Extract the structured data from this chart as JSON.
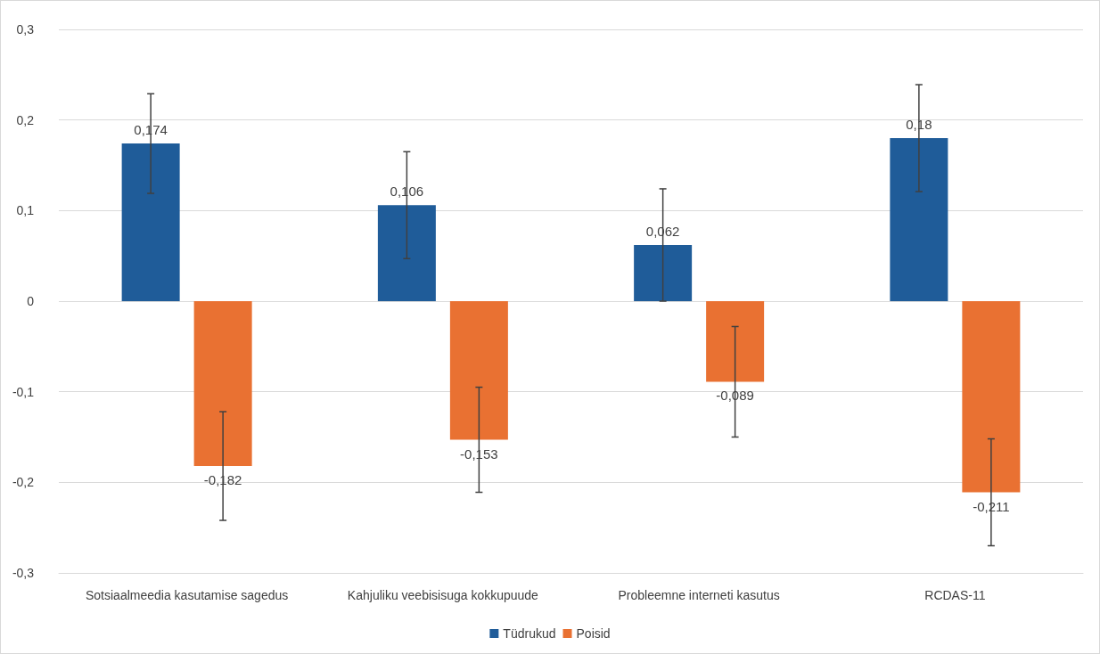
{
  "chart_data": {
    "type": "bar",
    "categories": [
      "Sotsiaalmeedia kasutamise sagedus",
      "Kahjuliku veebisisuga kokkupuude",
      "Probleemne interneti kasutus",
      "RCDAS-11"
    ],
    "series": [
      {
        "name": "Tüdrukud",
        "color": "#1f5c99",
        "values": [
          0.174,
          0.106,
          0.062,
          0.18
        ],
        "value_labels": [
          "0,174",
          "0,106",
          "0,062",
          "0,18"
        ],
        "errors": [
          0.055,
          0.059,
          0.062,
          0.059
        ]
      },
      {
        "name": "Poisid",
        "color": "#e97132",
        "values": [
          -0.182,
          -0.153,
          -0.089,
          -0.211
        ],
        "value_labels": [
          "-0,182",
          "-0,153",
          "-0,089",
          "-0,211"
        ],
        "errors": [
          0.06,
          0.058,
          0.061,
          0.059
        ]
      }
    ],
    "ylim": [
      -0.3,
      0.3
    ],
    "yticks": [
      {
        "value": -0.3,
        "label": "-0,3"
      },
      {
        "value": -0.2,
        "label": "-0,2"
      },
      {
        "value": -0.1,
        "label": "-0,1"
      },
      {
        "value": 0,
        "label": "0"
      },
      {
        "value": 0.1,
        "label": "0,1"
      },
      {
        "value": 0.2,
        "label": "0,2"
      },
      {
        "value": 0.3,
        "label": "0,3"
      }
    ],
    "grid": "y",
    "legend": "bottom"
  }
}
